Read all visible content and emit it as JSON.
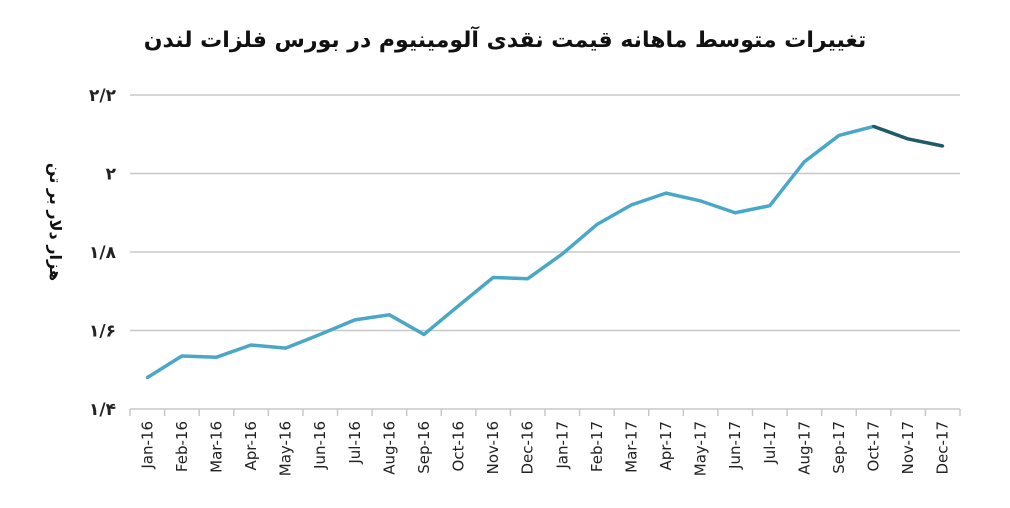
{
  "chart_data": {
    "type": "line",
    "title": "تغییرات متوسط ماهانه قیمت نقدی آلومینیوم در بورس فلزات لندن",
    "xlabel": "",
    "ylabel": "هزار دلار بر تن",
    "categories": [
      "Jan-16",
      "Feb-16",
      "Mar-16",
      "Apr-16",
      "May-16",
      "Jun-16",
      "Jul-16",
      "Aug-16",
      "Sep-16",
      "Oct-16",
      "Nov-16",
      "Dec-16",
      "Jan-17",
      "Feb-17",
      "Mar-17",
      "Apr-17",
      "May-17",
      "Jun-17",
      "Jul-17",
      "Aug-17",
      "Sep-17",
      "Oct-17",
      "Nov-17",
      "Dec-17"
    ],
    "series": [
      {
        "values": [
          1.48,
          1.535,
          1.532,
          1.563,
          1.555,
          1.59,
          1.627,
          1.64,
          1.59,
          1.663,
          1.735,
          1.732,
          1.795,
          1.87,
          1.92,
          1.95,
          1.93,
          1.9,
          1.918,
          2.03,
          2.097,
          2.12,
          2.088,
          2.07
        ],
        "color": "#4aa8c6",
        "highlight_from_index": 21,
        "highlight_color": "#1f5a68"
      }
    ],
    "y_tick_labels": [
      "۱/۴",
      "۱/۶",
      "۱/۸",
      "۲",
      "۲/۲"
    ],
    "y_tick_values": [
      1.4,
      1.6,
      1.8,
      2.0,
      2.2
    ],
    "ylim": [
      1.4,
      2.2
    ],
    "grid": true,
    "legend": "none"
  }
}
